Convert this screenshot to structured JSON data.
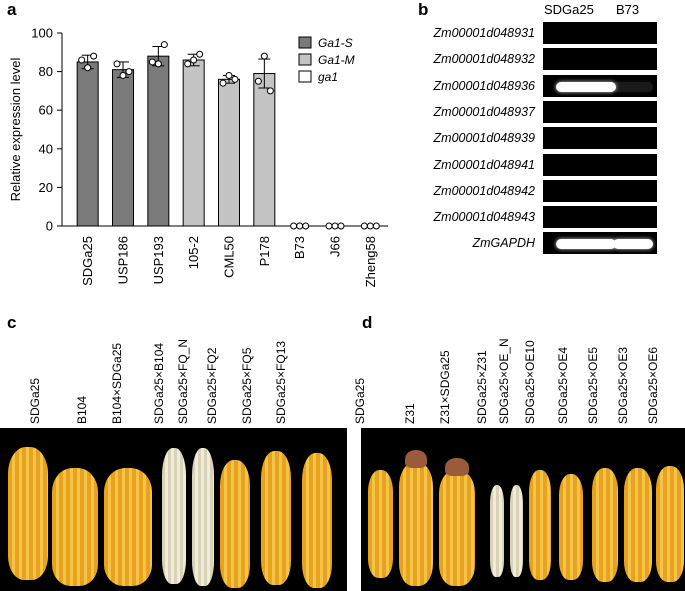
{
  "panels": {
    "a": "a",
    "b": "b",
    "c": "c",
    "d": "d"
  },
  "chart_data": {
    "type": "bar",
    "ylabel": "Relative expression level",
    "ylim": [
      0,
      100
    ],
    "yticks": [
      "0",
      "20",
      "40",
      "60",
      "80",
      "100"
    ],
    "categories": [
      "SDGa25",
      "USP186",
      "USP193",
      "105-2",
      "CML50",
      "P178",
      "B73",
      "J66",
      "Zheng58"
    ],
    "values": [
      85,
      81,
      88,
      86,
      76,
      79,
      0,
      0,
      0
    ],
    "errors": [
      3.5,
      4,
      5,
      3,
      2,
      7.5,
      0,
      0,
      0
    ],
    "points": [
      [
        86,
        82,
        88
      ],
      [
        84,
        78,
        80
      ],
      [
        85,
        84,
        94
      ],
      [
        84,
        86,
        89
      ],
      [
        74,
        78,
        76
      ],
      [
        75,
        88,
        70
      ],
      [
        0,
        0,
        0
      ],
      [
        0,
        0,
        0
      ],
      [
        0,
        0,
        0
      ]
    ],
    "groups": [
      "Ga1-S",
      "Ga1-S",
      "Ga1-S",
      "Ga1-M",
      "Ga1-M",
      "Ga1-M",
      "ga1",
      "ga1",
      "ga1"
    ],
    "legend": [
      {
        "name": "Ga1-S",
        "color": "#7a7a7a"
      },
      {
        "name": "Ga1-M",
        "color": "#c4c4c4"
      },
      {
        "name": "ga1",
        "color": "#ffffff"
      }
    ],
    "legend_position": "top-right"
  },
  "gel": {
    "lanes": [
      "SDGa25",
      "B73"
    ],
    "rows": [
      {
        "gene": "Zm00001d048931",
        "bands": [
          0,
          0
        ]
      },
      {
        "gene": "Zm00001d048932",
        "bands": [
          0,
          0
        ]
      },
      {
        "gene": "Zm00001d048936",
        "bands": [
          1,
          0.1
        ]
      },
      {
        "gene": "Zm00001d048937",
        "bands": [
          0,
          0
        ]
      },
      {
        "gene": "Zm00001d048939",
        "bands": [
          0,
          0
        ]
      },
      {
        "gene": "Zm00001d048941",
        "bands": [
          0,
          0
        ]
      },
      {
        "gene": "Zm00001d048942",
        "bands": [
          0,
          0
        ]
      },
      {
        "gene": "Zm00001d048943",
        "bands": [
          0,
          0
        ]
      },
      {
        "gene": "ZmGAPDH",
        "bands": [
          1,
          1
        ]
      }
    ]
  },
  "photo_c": {
    "labels": [
      "SDGa25",
      "B104",
      "B104×SDGa25",
      "SDGa25×B104",
      "SDGa25×FQ_N",
      "SDGa25×FQ2",
      "SDGa25×FQ5",
      "SDGa25×FQ13"
    ],
    "cob_colors": [
      "yellow",
      "yellow",
      "yellow",
      "white",
      "white",
      "yellow",
      "yellow",
      "yellow"
    ]
  },
  "photo_d": {
    "labels": [
      "SDGa25",
      "Z31",
      "Z31×SDGa25",
      "SDGa25×Z31",
      "SDGa25×OE_N",
      "SDGa25×OE10",
      "SDGa25×OE4",
      "SDGa25×OE5",
      "SDGa25×OE3",
      "SDGa25×OE6"
    ],
    "cob_colors": [
      "yellow",
      "yellow",
      "yellow",
      "white",
      "white",
      "yellow",
      "yellow",
      "yellow",
      "yellow",
      "yellow"
    ]
  }
}
